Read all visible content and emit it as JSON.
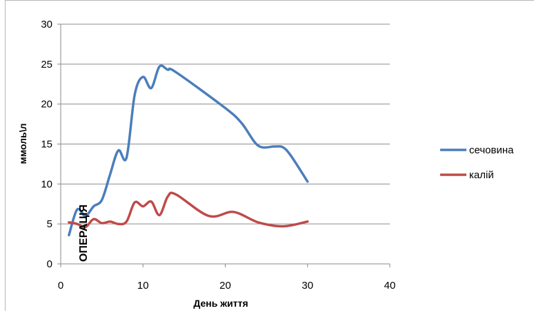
{
  "chart_data": {
    "type": "line",
    "smooth": true,
    "xlabel": "День життя",
    "ylabel": "ммоль\\л",
    "xlim": [
      0,
      40
    ],
    "ylim": [
      0,
      30
    ],
    "xticks": [
      0,
      10,
      20,
      30,
      40
    ],
    "yticks": [
      0,
      5,
      10,
      15,
      20,
      25,
      30
    ],
    "grid": {
      "horizontal": true,
      "vertical": false
    },
    "legend_position": "right",
    "annotation": {
      "text": "ОПЕРАЦІЯ",
      "x": 3,
      "rotated": true
    },
    "series": [
      {
        "name": "сечовина",
        "color": "#4a7ebb",
        "points": [
          [
            1,
            3.6
          ],
          [
            2,
            6.8
          ],
          [
            3,
            6.0
          ],
          [
            4,
            7.2
          ],
          [
            5,
            8.0
          ],
          [
            6,
            11.2
          ],
          [
            7,
            14.2
          ],
          [
            8,
            13.3
          ],
          [
            9,
            21.2
          ],
          [
            10,
            23.4
          ],
          [
            11,
            22.0
          ],
          [
            12,
            24.7
          ],
          [
            13,
            24.3
          ],
          [
            14,
            24.0
          ],
          [
            20,
            19.5
          ],
          [
            22,
            17.6
          ],
          [
            24,
            14.8
          ],
          [
            26,
            14.7
          ],
          [
            27,
            14.6
          ],
          [
            28,
            13.5
          ],
          [
            30,
            10.3
          ]
        ]
      },
      {
        "name": "калій",
        "color": "#be4b48",
        "points": [
          [
            1,
            5.2
          ],
          [
            2,
            5.0
          ],
          [
            3,
            4.6
          ],
          [
            4,
            5.6
          ],
          [
            5,
            5.1
          ],
          [
            6,
            5.3
          ],
          [
            7,
            5.0
          ],
          [
            8,
            5.3
          ],
          [
            9,
            7.7
          ],
          [
            10,
            7.2
          ],
          [
            11,
            7.8
          ],
          [
            12,
            6.1
          ],
          [
            13,
            8.4
          ],
          [
            14,
            8.7
          ],
          [
            18,
            6.0
          ],
          [
            21,
            6.5
          ],
          [
            24,
            5.2
          ],
          [
            27,
            4.7
          ],
          [
            30,
            5.3
          ]
        ]
      }
    ]
  }
}
